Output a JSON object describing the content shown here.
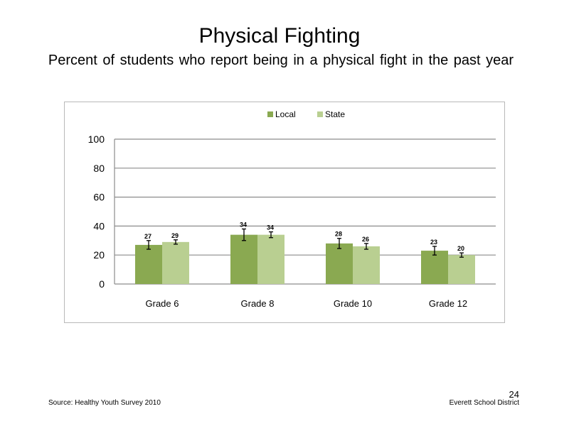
{
  "slide": {
    "title": "Physical Fighting",
    "subtitle": "Percent of students who report being in a physical fight in the past year",
    "source": "Source: Healthy Youth Survey 2010",
    "organization": "Everett School District",
    "page_number": "24"
  },
  "chart_data": {
    "type": "bar",
    "title": "",
    "xlabel": "",
    "ylabel": "",
    "ylim": [
      0,
      100
    ],
    "yticks": [
      0,
      20,
      40,
      60,
      80,
      100
    ],
    "grid": true,
    "legend_position": "top",
    "categories": [
      "Grade 6",
      "Grade 8",
      "Grade 10",
      "Grade 12"
    ],
    "series": [
      {
        "name": "Local",
        "color": "#8aa951",
        "values": [
          27,
          34,
          28,
          23
        ],
        "error": [
          3,
          4,
          3.5,
          3
        ]
      },
      {
        "name": "State",
        "color": "#b9cf91",
        "values": [
          29,
          34,
          26,
          20
        ],
        "error": [
          1.5,
          2,
          2,
          1.5
        ]
      }
    ]
  }
}
